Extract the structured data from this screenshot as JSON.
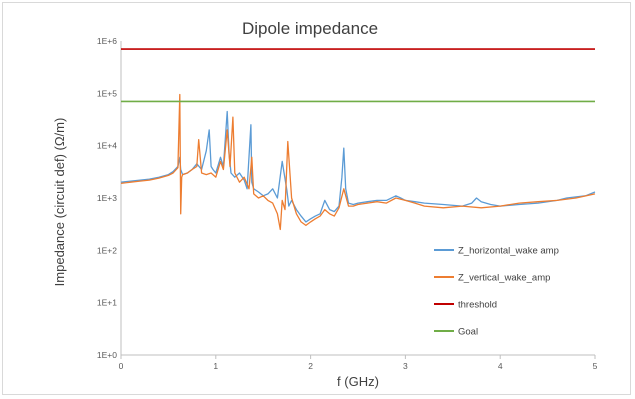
{
  "chart_data": {
    "type": "line",
    "title": "Dipole impedance",
    "xlabel": "f (GHz)",
    "ylabel": "Impedance (circuit def) (Ω/m)",
    "xlim": [
      0,
      5
    ],
    "ylim": [
      1,
      1000000
    ],
    "yscale": "log",
    "grid": false,
    "legend_position": "right",
    "x_ticks": [
      "0",
      "1",
      "2",
      "3",
      "4",
      "5"
    ],
    "y_ticks": [
      "1E+0",
      "1E+1",
      "1E+2",
      "1E+3",
      "1E+4",
      "1E+5",
      "1E+6"
    ],
    "series": [
      {
        "name": "Z_horizontal_wake amp",
        "color": "#5b9bd5",
        "x": [
          0,
          0.1,
          0.2,
          0.3,
          0.4,
          0.5,
          0.55,
          0.6,
          0.62,
          0.63,
          0.65,
          0.7,
          0.75,
          0.8,
          0.85,
          0.9,
          0.93,
          0.95,
          0.97,
          1.0,
          1.05,
          1.08,
          1.12,
          1.14,
          1.16,
          1.2,
          1.25,
          1.3,
          1.33,
          1.37,
          1.38,
          1.4,
          1.45,
          1.5,
          1.55,
          1.6,
          1.65,
          1.7,
          1.75,
          1.77,
          1.8,
          1.85,
          1.9,
          1.95,
          2.0,
          2.05,
          2.1,
          2.15,
          2.2,
          2.25,
          2.3,
          2.33,
          2.35,
          2.37,
          2.4,
          2.45,
          2.5,
          2.6,
          2.7,
          2.8,
          2.9,
          2.95,
          3.0,
          3.1,
          3.2,
          3.4,
          3.6,
          3.7,
          3.75,
          3.8,
          3.9,
          4.0,
          4.2,
          4.4,
          4.5,
          4.6,
          4.7,
          4.8,
          4.9,
          5.0
        ],
        "values": [
          2000,
          2100,
          2200,
          2300,
          2500,
          2800,
          3200,
          4000,
          6000,
          3500,
          2800,
          3000,
          3500,
          4500,
          3500,
          8000,
          20000,
          4000,
          3500,
          3000,
          6000,
          4000,
          45000,
          7000,
          3000,
          2500,
          3000,
          2200,
          1500,
          25000,
          2000,
          1500,
          1300,
          1100,
          1200,
          1500,
          1000,
          5000,
          1400,
          700,
          900,
          600,
          450,
          350,
          400,
          450,
          500,
          900,
          600,
          550,
          700,
          2500,
          9000,
          1500,
          800,
          750,
          800,
          850,
          900,
          900,
          1100,
          1000,
          900,
          850,
          800,
          750,
          700,
          800,
          1000,
          850,
          750,
          700,
          750,
          800,
          850,
          900,
          1000,
          1050,
          1100,
          1300
        ]
      },
      {
        "name": "Z_vertical_wake_amp",
        "color": "#ed7d31",
        "x": [
          0,
          0.1,
          0.2,
          0.3,
          0.4,
          0.5,
          0.55,
          0.6,
          0.62,
          0.63,
          0.64,
          0.65,
          0.7,
          0.75,
          0.8,
          0.82,
          0.85,
          0.9,
          0.95,
          1.0,
          1.05,
          1.08,
          1.12,
          1.15,
          1.18,
          1.2,
          1.25,
          1.3,
          1.35,
          1.38,
          1.4,
          1.45,
          1.5,
          1.55,
          1.6,
          1.65,
          1.68,
          1.7,
          1.73,
          1.76,
          1.8,
          1.85,
          1.9,
          1.95,
          2.0,
          2.05,
          2.1,
          2.15,
          2.2,
          2.25,
          2.3,
          2.35,
          2.4,
          2.45,
          2.5,
          2.6,
          2.7,
          2.8,
          2.9,
          3.0,
          3.1,
          3.2,
          3.4,
          3.6,
          3.8,
          4.0,
          4.2,
          4.4,
          4.6,
          4.8,
          5.0
        ],
        "values": [
          1900,
          2000,
          2100,
          2200,
          2400,
          2700,
          3000,
          3800,
          95000,
          500,
          2500,
          2800,
          3000,
          3500,
          4000,
          13000,
          3000,
          2800,
          3000,
          2500,
          5000,
          3500,
          20000,
          4000,
          35000,
          3000,
          2000,
          2500,
          1500,
          6000,
          1200,
          1000,
          1100,
          900,
          800,
          500,
          250,
          900,
          600,
          12000,
          1000,
          500,
          350,
          300,
          350,
          400,
          450,
          600,
          500,
          450,
          650,
          1500,
          700,
          700,
          750,
          800,
          850,
          800,
          1000,
          900,
          800,
          700,
          650,
          700,
          650,
          700,
          800,
          850,
          900,
          1000,
          1200
        ]
      },
      {
        "name": "threshold",
        "color": "#c00000",
        "x": [
          0,
          5
        ],
        "values": [
          700000,
          700000
        ]
      },
      {
        "name": "Goal",
        "color": "#70ad47",
        "x": [
          0,
          5
        ],
        "values": [
          70000,
          70000
        ]
      }
    ]
  }
}
